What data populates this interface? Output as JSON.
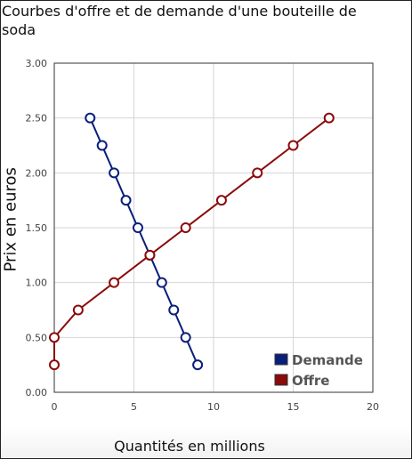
{
  "chart_data": {
    "type": "line",
    "title": "Courbes d'offre et de demande d'une bouteille de soda",
    "xlabel": "Quantités en millions",
    "ylabel": "Prix en euros",
    "xlim": [
      0,
      20
    ],
    "ylim": [
      0,
      3
    ],
    "x_ticks": [
      "0",
      "5",
      "10",
      "15",
      "20"
    ],
    "y_ticks": [
      "0.00",
      "0.50",
      "1.00",
      "1.50",
      "2.00",
      "2.50",
      "3.00"
    ],
    "grid": true,
    "legend_position": "bottom-right",
    "series": [
      {
        "name": "Demande",
        "color": "#0a1f7a",
        "points": [
          {
            "x": 2.25,
            "y": 2.5
          },
          {
            "x": 3.0,
            "y": 2.25
          },
          {
            "x": 3.75,
            "y": 2.0
          },
          {
            "x": 4.5,
            "y": 1.75
          },
          {
            "x": 5.25,
            "y": 1.5
          },
          {
            "x": 6.0,
            "y": 1.25
          },
          {
            "x": 6.75,
            "y": 1.0
          },
          {
            "x": 7.5,
            "y": 0.75
          },
          {
            "x": 8.25,
            "y": 0.5
          },
          {
            "x": 9.0,
            "y": 0.25
          }
        ]
      },
      {
        "name": "Offre",
        "color": "#8b0a0a",
        "points": [
          {
            "x": 0.0,
            "y": 0.25
          },
          {
            "x": 0.0,
            "y": 0.5
          },
          {
            "x": 1.5,
            "y": 0.75
          },
          {
            "x": 3.75,
            "y": 1.0
          },
          {
            "x": 6.0,
            "y": 1.25
          },
          {
            "x": 8.25,
            "y": 1.5
          },
          {
            "x": 10.5,
            "y": 1.75
          },
          {
            "x": 12.75,
            "y": 2.0
          },
          {
            "x": 15.0,
            "y": 2.25
          },
          {
            "x": 17.25,
            "y": 2.5
          }
        ]
      }
    ]
  }
}
